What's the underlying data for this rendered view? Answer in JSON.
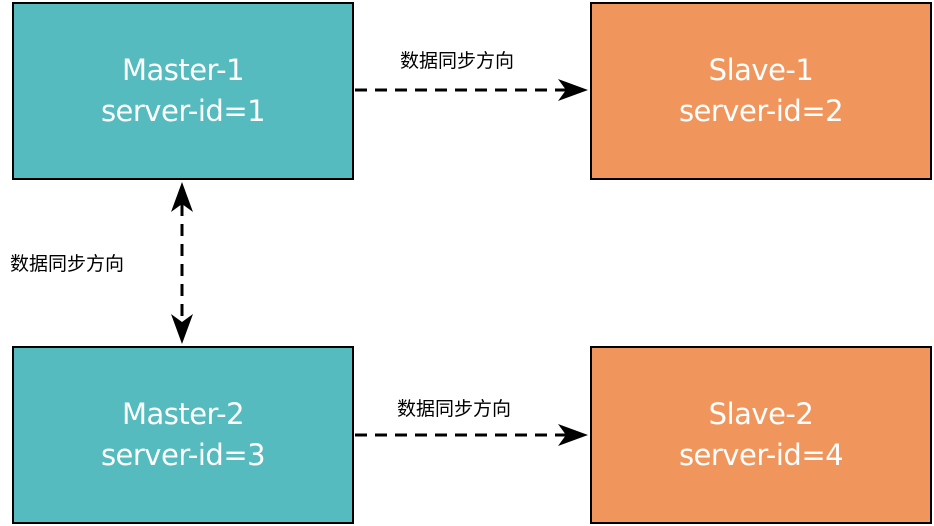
{
  "nodes": {
    "master1": {
      "name": "Master-1",
      "id_label": "server-id=1",
      "color": "#55bbbe"
    },
    "slave1": {
      "name": "Slave-1",
      "id_label": "server-id=2",
      "color": "#f0965d"
    },
    "master2": {
      "name": "Master-2",
      "id_label": "server-id=3",
      "color": "#55bbbe"
    },
    "slave2": {
      "name": "Slave-2",
      "id_label": "server-id=4",
      "color": "#f0965d"
    }
  },
  "edges": {
    "master1_to_slave1": {
      "label": "数据同步方向",
      "style": "dashed",
      "direction": "one-way"
    },
    "master1_master2": {
      "label": "数据同步方向",
      "style": "dashed",
      "direction": "two-way"
    },
    "master2_to_slave2": {
      "label": "数据同步方向",
      "style": "dashed",
      "direction": "one-way"
    }
  }
}
